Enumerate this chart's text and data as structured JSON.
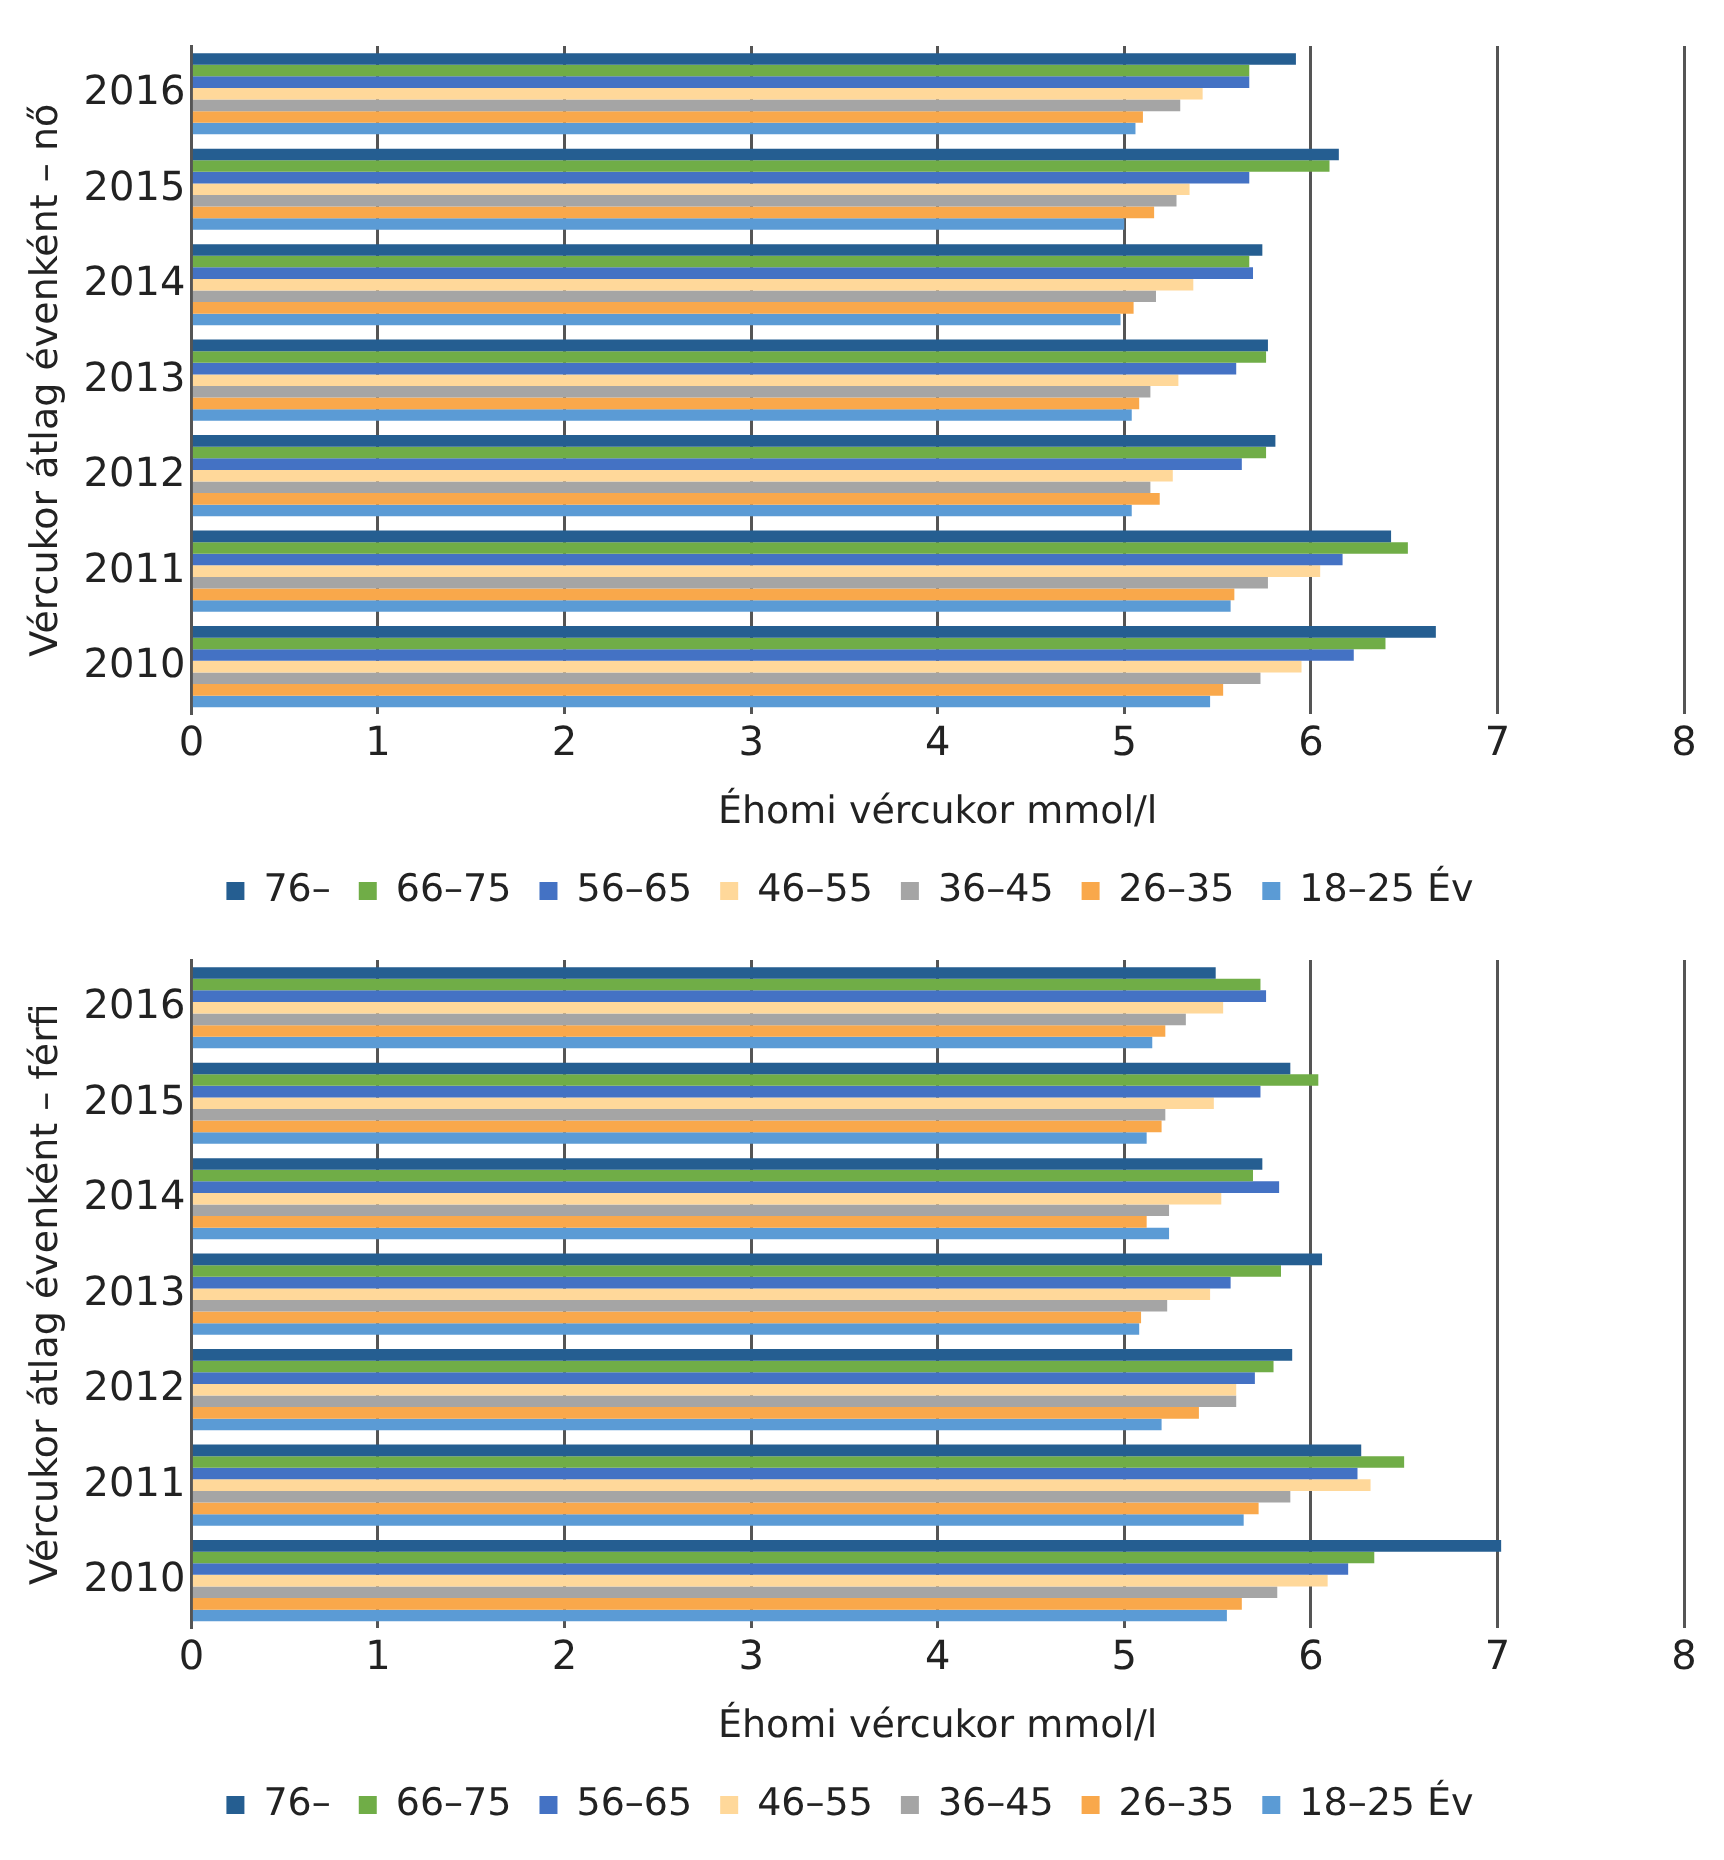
{
  "chart_data": [
    {
      "type": "bar",
      "orientation": "horizontal",
      "xlabel": "Éhomi vércukor mmol/l",
      "ylabel": "Vércukor átlag évenként – nő",
      "categories": [
        "2016",
        "2015",
        "2014",
        "2013",
        "2012",
        "2011",
        "2010"
      ],
      "xlim": [
        0,
        8
      ],
      "xticks": [
        0,
        1,
        2,
        3,
        4,
        5,
        6,
        7,
        8
      ],
      "grid": "x",
      "legend": "bottom",
      "series": [
        {
          "name": "76–",
          "color": "#255e91",
          "values": [
            5.92,
            6.15,
            5.74,
            5.77,
            5.81,
            6.43,
            6.67
          ]
        },
        {
          "name": "66–75",
          "color": "#70ad47",
          "values": [
            5.67,
            6.1,
            5.67,
            5.76,
            5.76,
            6.52,
            6.4
          ]
        },
        {
          "name": "56–65",
          "color": "#4472c4",
          "values": [
            5.67,
            5.67,
            5.69,
            5.6,
            5.63,
            6.17,
            6.23
          ]
        },
        {
          "name": "46–55",
          "color": "#ffd89a",
          "values": [
            5.42,
            5.35,
            5.37,
            5.29,
            5.26,
            6.05,
            5.95
          ]
        },
        {
          "name": "36–45",
          "color": "#a5a5a5",
          "values": [
            5.3,
            5.28,
            5.17,
            5.14,
            5.14,
            5.77,
            5.73
          ]
        },
        {
          "name": "26–35",
          "color": "#f9a84b",
          "values": [
            5.1,
            5.16,
            5.05,
            5.08,
            5.19,
            5.59,
            5.53
          ]
        },
        {
          "name": "18–25 Év",
          "color": "#5b9bd5",
          "values": [
            5.06,
            5.0,
            4.98,
            5.04,
            5.04,
            5.57,
            5.46
          ]
        }
      ]
    },
    {
      "type": "bar",
      "orientation": "horizontal",
      "xlabel": "Éhomi vércukor mmol/l",
      "ylabel": "Vércukor átlag évenként – férfi",
      "categories": [
        "2016",
        "2015",
        "2014",
        "2013",
        "2012",
        "2011",
        "2010"
      ],
      "xlim": [
        0,
        8
      ],
      "xticks": [
        0,
        1,
        2,
        3,
        4,
        5,
        6,
        7,
        8
      ],
      "grid": "x",
      "legend": "bottom",
      "series": [
        {
          "name": "76–",
          "color": "#255e91",
          "values": [
            5.49,
            5.89,
            5.74,
            6.06,
            5.9,
            6.27,
            7.02
          ]
        },
        {
          "name": "66–75",
          "color": "#70ad47",
          "values": [
            5.73,
            6.04,
            5.69,
            5.84,
            5.8,
            6.5,
            6.34
          ]
        },
        {
          "name": "56–65",
          "color": "#4472c4",
          "values": [
            5.76,
            5.73,
            5.83,
            5.57,
            5.7,
            6.25,
            6.2
          ]
        },
        {
          "name": "46–55",
          "color": "#ffd89a",
          "values": [
            5.53,
            5.48,
            5.52,
            5.46,
            5.6,
            6.32,
            6.09
          ]
        },
        {
          "name": "36–45",
          "color": "#a5a5a5",
          "values": [
            5.33,
            5.22,
            5.24,
            5.23,
            5.6,
            5.89,
            5.82
          ]
        },
        {
          "name": "26–35",
          "color": "#f9a84b",
          "values": [
            5.22,
            5.2,
            5.12,
            5.09,
            5.4,
            5.72,
            5.63
          ]
        },
        {
          "name": "18–25 Év",
          "color": "#5b9bd5",
          "values": [
            5.15,
            5.12,
            5.24,
            5.08,
            5.2,
            5.64,
            5.55
          ]
        }
      ]
    }
  ]
}
